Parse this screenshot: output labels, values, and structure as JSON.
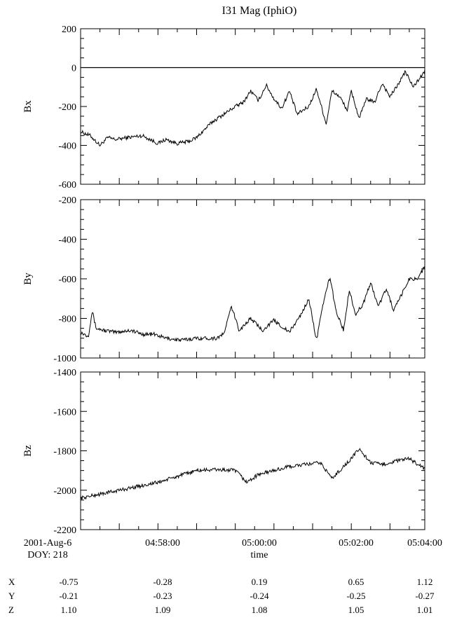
{
  "title": "I31 Mag (IphiO)",
  "date_label": "2001-Aug-6",
  "doy_label": "DOY: 218",
  "xlabel": "time",
  "x_tick_labels": [
    "04:58:00",
    "05:00:00",
    "05:02:00",
    "05:04:00"
  ],
  "ephemeris": {
    "rows": [
      {
        "label": "X",
        "values": [
          "-0.75",
          "-0.28",
          "0.19",
          "0.65",
          "1.12"
        ]
      },
      {
        "label": "Y",
        "values": [
          "-0.21",
          "-0.23",
          "-0.24",
          "-0.25",
          "-0.27"
        ]
      },
      {
        "label": "Z",
        "values": [
          "1.10",
          "1.09",
          "1.08",
          "1.05",
          "1.01"
        ]
      }
    ]
  },
  "chart_data": [
    {
      "type": "line",
      "ylabel": "Bx",
      "ylim": [
        -600,
        200
      ],
      "yticks": [
        -600,
        -400,
        -200,
        0,
        200
      ],
      "zero_line": true,
      "xlim_minutes": [
        0,
        8.9
      ],
      "x": [
        0.0,
        0.25,
        0.5,
        0.7,
        0.9,
        1.2,
        1.6,
        2.0,
        2.2,
        2.5,
        2.8,
        3.0,
        3.2,
        3.4,
        3.7,
        4.0,
        4.2,
        4.4,
        4.6,
        4.8,
        5.0,
        5.2,
        5.4,
        5.6,
        5.9,
        6.1,
        6.2,
        6.35,
        6.5,
        6.7,
        6.9,
        7.0,
        7.2,
        7.4,
        7.6,
        7.8,
        8.0,
        8.2,
        8.4,
        8.6,
        8.9
      ],
      "y": [
        -330,
        -350,
        -400,
        -360,
        -370,
        -360,
        -350,
        -390,
        -370,
        -390,
        -380,
        -360,
        -320,
        -280,
        -240,
        -200,
        -180,
        -120,
        -170,
        -90,
        -160,
        -210,
        -120,
        -240,
        -200,
        -110,
        -180,
        -290,
        -120,
        -150,
        -220,
        -120,
        -260,
        -160,
        -180,
        -80,
        -150,
        -90,
        -20,
        -100,
        -20
      ]
    },
    {
      "type": "line",
      "ylabel": "By",
      "ylim": [
        -1000,
        -200
      ],
      "yticks": [
        -1000,
        -800,
        -600,
        -400,
        -200
      ],
      "xlim_minutes": [
        0,
        8.9
      ],
      "x": [
        0.0,
        0.2,
        0.3,
        0.4,
        0.6,
        0.9,
        1.3,
        1.6,
        1.9,
        2.2,
        2.6,
        3.0,
        3.5,
        3.7,
        3.9,
        4.1,
        4.4,
        4.7,
        5.0,
        5.4,
        5.7,
        5.9,
        6.1,
        6.3,
        6.45,
        6.6,
        6.8,
        6.95,
        7.1,
        7.3,
        7.5,
        7.7,
        7.9,
        8.1,
        8.3,
        8.5,
        8.7,
        8.9
      ],
      "y": [
        -870,
        -890,
        -760,
        -850,
        -860,
        -870,
        -860,
        -880,
        -880,
        -900,
        -910,
        -900,
        -900,
        -880,
        -740,
        -860,
        -800,
        -860,
        -810,
        -870,
        -780,
        -700,
        -910,
        -700,
        -590,
        -760,
        -860,
        -650,
        -780,
        -730,
        -620,
        -740,
        -650,
        -760,
        -680,
        -600,
        -600,
        -540
      ]
    },
    {
      "type": "line",
      "ylabel": "Bz",
      "ylim": [
        -2200,
        -1400
      ],
      "yticks": [
        -2200,
        -2000,
        -1800,
        -1600,
        -1400
      ],
      "xlim_minutes": [
        0,
        8.9
      ],
      "x": [
        0.0,
        0.5,
        1.0,
        1.5,
        2.0,
        2.5,
        3.0,
        3.5,
        4.0,
        4.3,
        4.6,
        5.0,
        5.4,
        5.8,
        6.2,
        6.5,
        6.8,
        7.0,
        7.2,
        7.5,
        7.8,
        8.2,
        8.5,
        8.9
      ],
      "y": [
        -2040,
        -2020,
        -2000,
        -1980,
        -1960,
        -1930,
        -1900,
        -1895,
        -1900,
        -1960,
        -1920,
        -1900,
        -1880,
        -1870,
        -1860,
        -1940,
        -1880,
        -1840,
        -1790,
        -1860,
        -1870,
        -1850,
        -1840,
        -1890
      ]
    }
  ]
}
